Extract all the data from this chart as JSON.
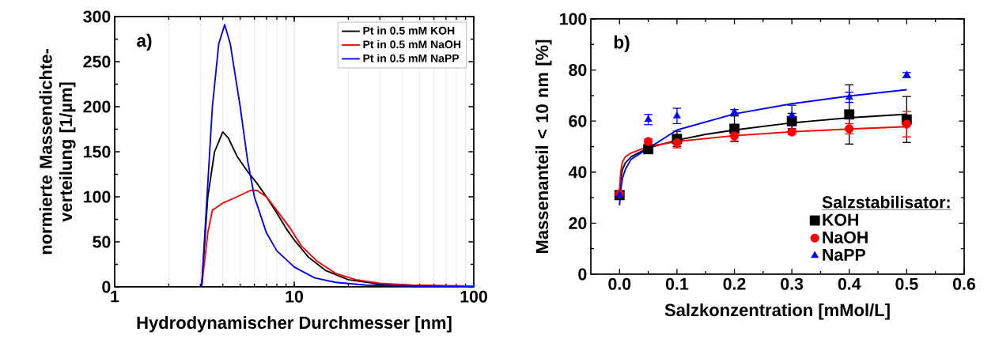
{
  "chart_data": [
    {
      "type": "line",
      "xlabel": "Hydrodynamischer Durchmesser [nm]",
      "ylabel": "normierte Massendichte-verteilung [1/µm]",
      "annotations": [
        "a)"
      ],
      "log": "x",
      "xlim": [
        1,
        100
      ],
      "xticks": [
        1,
        10,
        100
      ],
      "ylim": [
        0,
        300
      ],
      "yticks": [
        0,
        50,
        100,
        150,
        200,
        250,
        300
      ],
      "grid": "x",
      "legend": "top right",
      "line_style": "solid",
      "series": [
        {
          "name": "Pt in 0.5 mM KOH",
          "color": "#000000",
          "x": [
            3.05,
            3.3,
            3.6,
            4.0,
            4.3,
            4.8,
            5.5,
            6.2,
            7,
            8,
            9,
            10,
            12,
            15,
            20,
            30,
            50,
            100
          ],
          "values": [
            0,
            100,
            150,
            172,
            165,
            145,
            128,
            115,
            100,
            82,
            65,
            52,
            33,
            18,
            8,
            3,
            1,
            0
          ]
        },
        {
          "name": "Pt in 0.5 mM NaOH",
          "color": "#ff0000",
          "x": [
            3.05,
            3.3,
            3.5,
            4.0,
            4.8,
            5.7,
            6.2,
            7,
            8,
            9.5,
            11,
            13.5,
            17,
            22,
            30,
            45,
            100
          ],
          "values": [
            0,
            60,
            85,
            93,
            100,
            107,
            107,
            100,
            85,
            65,
            45,
            28,
            15,
            8,
            4,
            2,
            1
          ]
        },
        {
          "name": "Pt in 0.5 mM NaPP",
          "color": "#0000ff",
          "x": [
            3.05,
            3.5,
            3.8,
            4.1,
            4.4,
            5,
            5.5,
            6,
            7,
            8,
            10,
            13,
            17,
            25,
            50,
            100
          ],
          "values": [
            0,
            200,
            270,
            291,
            270,
            200,
            140,
            100,
            60,
            40,
            22,
            10,
            5,
            2,
            1,
            0
          ]
        }
      ]
    },
    {
      "type": "scatter",
      "xlabel": "Salzkonzentration [mMol/L]",
      "ylabel": "Massenanteil < 10 nm [%]",
      "legend_title": "Salzstabilisator:",
      "annotations": [
        "b)"
      ],
      "xlim": [
        -0.05,
        0.6
      ],
      "xticks": [
        {
          "value": 0,
          "label": "0.0"
        },
        0.1,
        0.2,
        0.3,
        0.4,
        0.5,
        0.6
      ],
      "ylim": [
        0,
        100
      ],
      "yticks": [
        0,
        20,
        40,
        60,
        80,
        100
      ],
      "legend": "bottom right",
      "series": [
        {
          "name": "KOH",
          "color": "#000000",
          "marker": "square",
          "x": [
            0,
            0.05,
            0.1,
            0.2,
            0.3,
            0.4,
            0.5
          ],
          "values": [
            31,
            49,
            53,
            57,
            60,
            62.6,
            60.6
          ],
          "errors": [
            null,
            1.5,
            3,
            5,
            3,
            11.6,
            9
          ]
        },
        {
          "name": "NaOH",
          "color": "#ff0000",
          "marker": "circle",
          "x": [
            0,
            0.05,
            0.1,
            0.2,
            0.3,
            0.4,
            0.5
          ],
          "values": [
            31.5,
            52,
            51.5,
            54.2,
            55.7,
            57,
            58.8
          ],
          "errors": [
            null,
            1,
            2,
            2,
            1,
            2,
            5
          ]
        },
        {
          "name": "NaPP",
          "color": "#0000ff",
          "marker": "triangle",
          "x": [
            0,
            0.05,
            0.1,
            0.2,
            0.3,
            0.4,
            0.5
          ],
          "values": [
            31,
            60.6,
            62,
            63.5,
            62.2,
            69.3,
            78
          ],
          "errors": [
            null,
            2,
            3,
            1,
            4,
            2,
            1
          ]
        },
        {
          "type": "line",
          "color": "#000000",
          "x": [
            0,
            0.002,
            0.005,
            0.01,
            0.02,
            0.05,
            0.1,
            0.15,
            0.2,
            0.3,
            0.4,
            0.5
          ],
          "values": [
            31,
            37,
            41,
            43.5,
            46,
            49.5,
            52.5,
            54.8,
            56.5,
            59.3,
            61.3,
            62.7
          ]
        },
        {
          "type": "line",
          "color": "#ff0000",
          "x": [
            0,
            0.002,
            0.005,
            0.01,
            0.02,
            0.05,
            0.1,
            0.2,
            0.3,
            0.4,
            0.5
          ],
          "values": [
            33,
            40,
            44,
            46,
            47.5,
            50,
            52,
            54.3,
            55.8,
            56.9,
            57.8
          ]
        },
        {
          "type": "line",
          "color": "#0000ff",
          "x": [
            0,
            0.002,
            0.005,
            0.01,
            0.02,
            0.1,
            0.2,
            0.3,
            0.4,
            0.5
          ],
          "values": [
            27,
            33,
            37.5,
            41,
            45,
            56.5,
            62.8,
            66.8,
            69.8,
            72.3
          ]
        }
      ]
    }
  ]
}
